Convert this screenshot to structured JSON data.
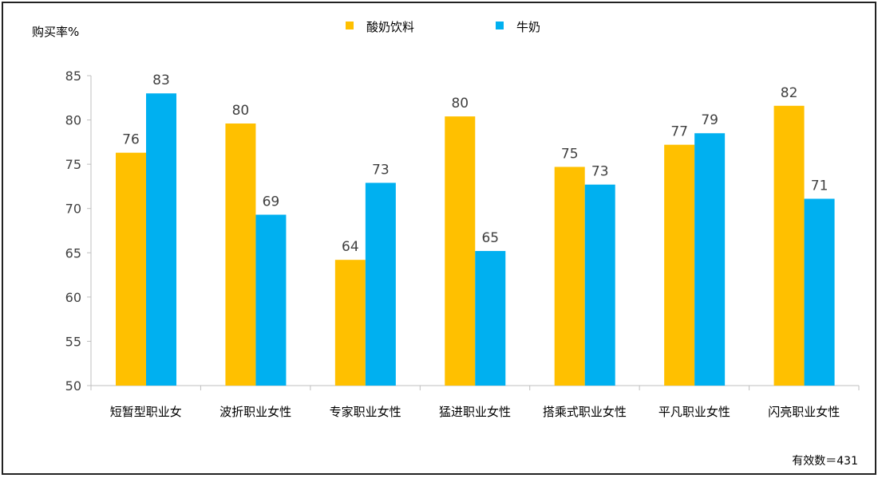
{
  "chart_data": {
    "type": "bar",
    "ylabel": "购买率%",
    "ylim": [
      50,
      85
    ],
    "yticks": [
      50,
      55,
      60,
      65,
      70,
      75,
      80,
      85
    ],
    "grid": false,
    "legend_placement": "top-center",
    "categories": [
      "短暂型职业女",
      "波折职业女性",
      "专家职业女性",
      "猛进职业女性",
      "搭乘式职业女性",
      "平凡职业女性",
      "闪亮职业女性"
    ],
    "series": [
      {
        "name": "酸奶饮料",
        "color": "#FFC000",
        "values": [
          76.3,
          79.6,
          64.2,
          80.4,
          74.7,
          77.2,
          81.6
        ],
        "labels": [
          "76",
          "80",
          "64",
          "80",
          "75",
          "77",
          "82"
        ]
      },
      {
        "name": "牛奶",
        "color": "#00B0F0",
        "values": [
          83.0,
          69.3,
          72.9,
          65.2,
          72.7,
          78.5,
          71.1
        ],
        "labels": [
          "83",
          "69",
          "73",
          "65",
          "73",
          "79",
          "71"
        ]
      }
    ],
    "note": "有效数＝431"
  }
}
